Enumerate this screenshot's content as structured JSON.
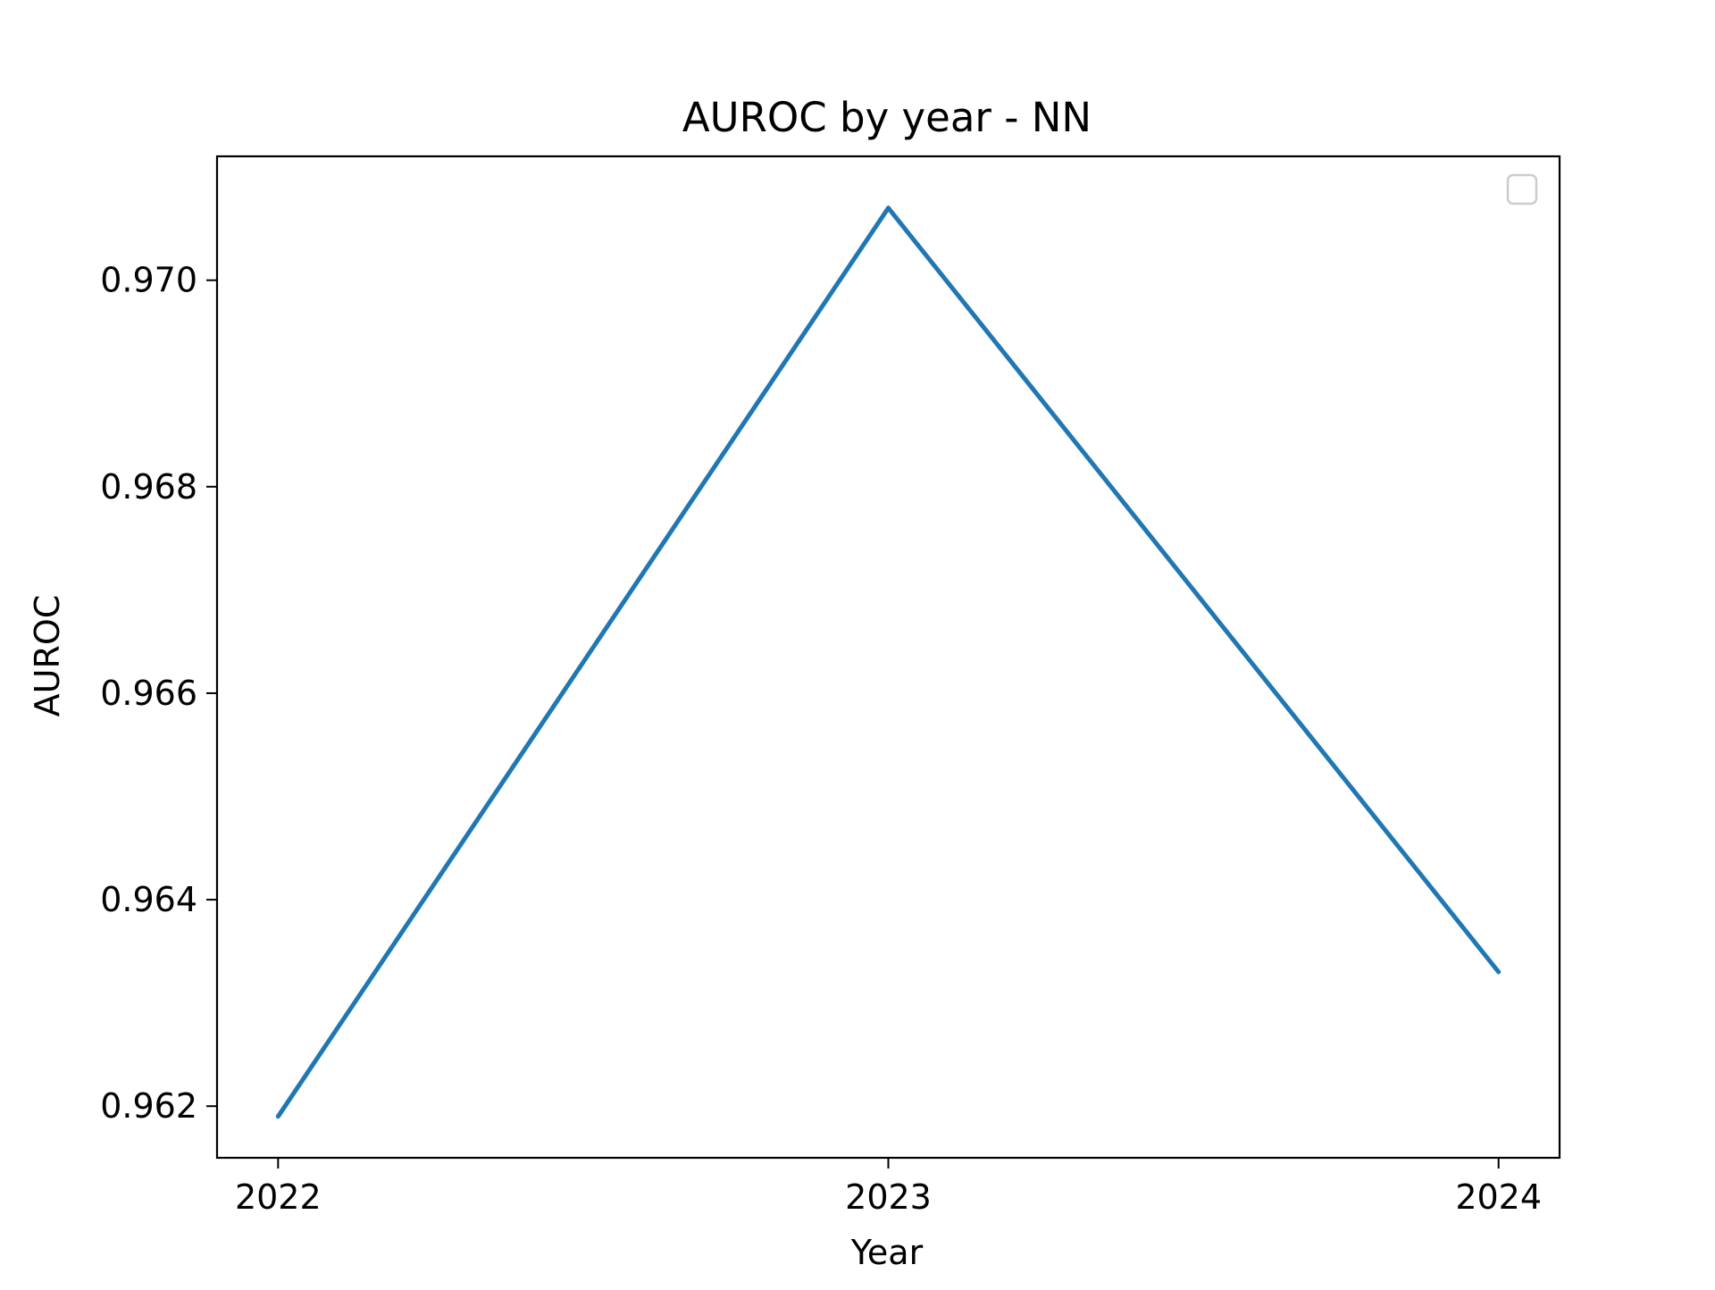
{
  "chart_data": {
    "type": "line",
    "title": "AUROC by year - NN",
    "xlabel": "Year",
    "ylabel": "AUROC",
    "categories": [
      "2022",
      "2023",
      "2024"
    ],
    "x": [
      2022,
      2023,
      2024
    ],
    "series": [
      {
        "values": [
          0.9619,
          0.9707,
          0.9633
        ],
        "color": "#1f77b4"
      }
    ],
    "xlim": [
      2021.9,
      2024.1
    ],
    "ylim": [
      0.9615,
      0.9712
    ],
    "yticks": [
      0.962,
      0.964,
      0.966,
      0.968,
      0.97
    ],
    "ytick_labels": [
      "0.962",
      "0.964",
      "0.966",
      "0.968",
      "0.970"
    ],
    "xticks": [
      2022,
      2023,
      2024
    ],
    "xtick_labels": [
      "2022",
      "2023",
      "2024"
    ],
    "grid": false,
    "legend": {
      "placement": "top-right",
      "entries": []
    }
  }
}
